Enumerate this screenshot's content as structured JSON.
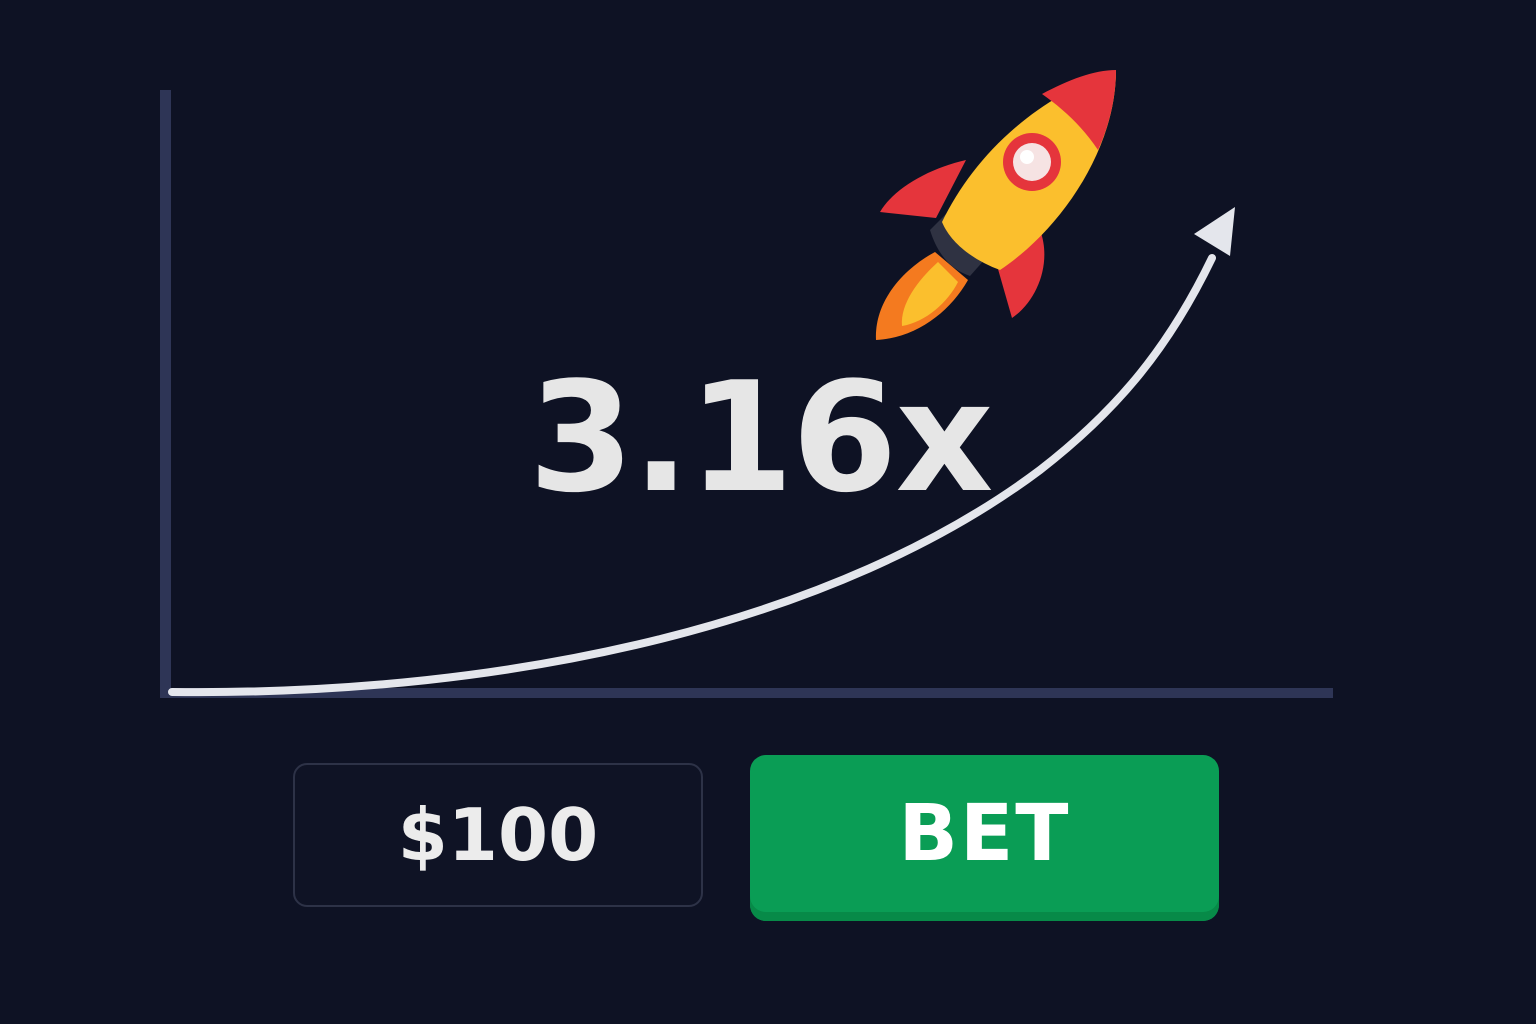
{
  "game": {
    "multiplier": "3.16x",
    "bet_amount": "$100",
    "bet_label": "BET"
  },
  "icons": {
    "rocket": "rocket-icon",
    "arrow": "arrow-head-icon"
  },
  "colors": {
    "background": "#0e1224",
    "axis": "#2e3556",
    "curve": "#e4e6ec",
    "bet_button": "#0a9d55",
    "rocket_body": "#fbbf2d",
    "rocket_nose": "#e5353c",
    "flame": "#f47a1f"
  }
}
